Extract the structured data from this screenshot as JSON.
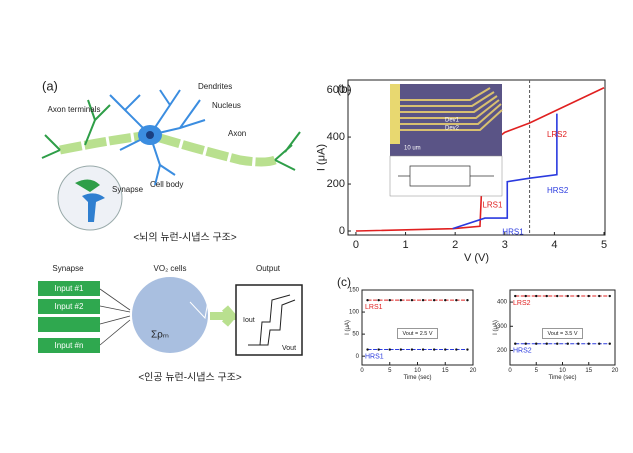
{
  "panel_a": {
    "label": "(a)",
    "axon_terminals": "Axon terminals",
    "dendrites": "Dendrites",
    "nucleus": "Nucleus",
    "axon": "Axon",
    "synapse": "Synapse",
    "cell_body": "Cell body",
    "caption_top": "<뇌의 뉴런-시냅스 구조>",
    "synapse_title": "Synapse",
    "cells_title": "VO₂ cells",
    "output_title": "Output",
    "inputs": [
      "Input #1",
      "Input #2",
      "Input #n"
    ],
    "sum_label": "Σρₘ",
    "i_out": "Iout",
    "v_out": "Vout",
    "caption_bottom": "<인공 뉴런-시냅스 구조>"
  },
  "panel_b": {
    "label": "(b)",
    "inset_scale": "10 um",
    "inset_dev1": "Dev1",
    "inset_dev2": "Dev2"
  },
  "panel_c": {
    "label": "(c)"
  },
  "chart_data": [
    {
      "type": "line",
      "x_label": "V (V)",
      "y_label": "I (μA)",
      "xlim": [
        -0.16,
        5.02
      ],
      "ylim": [
        -17,
        643
      ],
      "xticks": [
        0,
        1,
        2,
        3,
        4,
        5
      ],
      "yticks": [
        0,
        200,
        400,
        600
      ],
      "vline": 3.5,
      "series": [
        {
          "name": "LRS1",
          "color": "#e02020",
          "x": [
            0,
            1.95,
            2.5,
            2.55,
            2.7,
            2.75,
            3.0,
            3.5,
            4.0,
            4.5,
            5.0
          ],
          "values": [
            0,
            10,
            20,
            260,
            300,
            380,
            420,
            460,
            510,
            560,
            610
          ]
        },
        {
          "name": "HRS1",
          "color": "#2a3adf",
          "x": [
            1.95,
            2.6,
            3.05,
            3.05,
            3.5,
            4.05,
            4.05
          ],
          "values": [
            10,
            55,
            55,
            210,
            225,
            240,
            500
          ]
        }
      ],
      "annotations": [
        {
          "text": "LRS1",
          "x": 2.55,
          "y": 110,
          "color": "#e02020"
        },
        {
          "text": "HRS1",
          "x": 2.95,
          "y": -5,
          "color": "#2a3adf"
        },
        {
          "text": "LRS2",
          "x": 3.85,
          "y": 410,
          "color": "#e02020"
        },
        {
          "text": "HRS2",
          "x": 3.85,
          "y": 170,
          "color": "#2a3adf"
        }
      ]
    },
    {
      "type": "line",
      "x_label": "Time (sec)",
      "y_label": "I (μA)",
      "xlim": [
        0,
        20
      ],
      "ylim": [
        -20,
        150
      ],
      "xticks": [
        0,
        5,
        10,
        15,
        20
      ],
      "yticks": [
        0,
        50,
        100,
        150
      ],
      "annotation": "Vout = 2.5 V",
      "series": [
        {
          "name": "LRS1",
          "color": "#e02020",
          "x": [
            1,
            3,
            5,
            7,
            9,
            11,
            13,
            15,
            17,
            19
          ],
          "values": [
            127,
            127,
            127,
            127,
            127,
            127,
            127,
            127,
            127,
            127
          ]
        },
        {
          "name": "HRS1",
          "color": "#2a3adf",
          "x": [
            1,
            3,
            5,
            7,
            9,
            11,
            13,
            15,
            17,
            19
          ],
          "values": [
            15,
            15,
            15,
            15,
            15,
            15,
            15,
            15,
            15,
            15
          ]
        }
      ]
    },
    {
      "type": "line",
      "x_label": "Time (sec)",
      "y_label": "I (μA)",
      "xlim": [
        0,
        20
      ],
      "ylim": [
        140,
        450
      ],
      "xticks": [
        0,
        5,
        10,
        15,
        20
      ],
      "yticks": [
        200,
        300,
        400
      ],
      "annotation": "Vout = 3.5 V",
      "series": [
        {
          "name": "LRS2",
          "color": "#e02020",
          "x": [
            1,
            3,
            5,
            7,
            9,
            11,
            13,
            15,
            17,
            19
          ],
          "values": [
            425,
            425,
            425,
            425,
            425,
            425,
            425,
            425,
            425,
            425
          ]
        },
        {
          "name": "HRS2",
          "color": "#2a3adf",
          "x": [
            1,
            3,
            5,
            7,
            9,
            11,
            13,
            15,
            17,
            19
          ],
          "values": [
            228,
            228,
            228,
            228,
            228,
            228,
            228,
            228,
            228,
            228
          ]
        }
      ]
    }
  ]
}
